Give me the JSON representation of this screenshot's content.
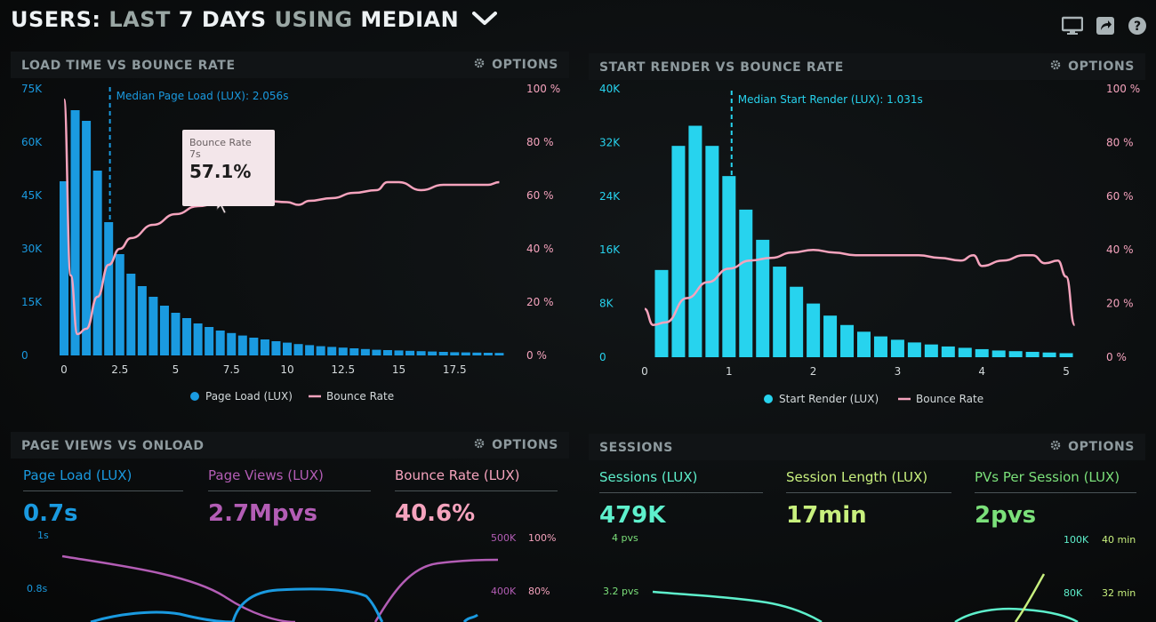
{
  "header": {
    "part1": "USERS:",
    "part2": "LAST",
    "part3": "7 DAYS",
    "part4": "USING",
    "part5": "MEDIAN"
  },
  "icons": [
    "monitor-icon",
    "share-icon",
    "help-icon"
  ],
  "options_label": "OPTIONS",
  "colors": {
    "blue": "#1a9ae0",
    "cyan": "#27d3ee",
    "pink": "#f5a3bd",
    "purple": "#b35db5",
    "mint": "#5ef0cc",
    "lime": "#c8f07e",
    "green": "#7be07a"
  },
  "panels": {
    "load_time": {
      "title": "LOAD TIME VS BOUNCE RATE",
      "median_label": "Median Page Load (LUX): 2.056s",
      "tooltip": {
        "title": "Bounce Rate",
        "sub": "7s",
        "value": "57.1%"
      },
      "legend_bars": "Page Load (LUX)",
      "legend_line": "Bounce Rate"
    },
    "start_render": {
      "title": "START RENDER VS BOUNCE RATE",
      "median_label": "Median Start Render (LUX): 1.031s",
      "legend_bars": "Start Render (LUX)",
      "legend_line": "Bounce Rate"
    },
    "page_views": {
      "title": "PAGE VIEWS VS ONLOAD",
      "metrics": [
        {
          "label": "Page Load (LUX)",
          "value": "0.7s"
        },
        {
          "label": "Page Views (LUX)",
          "value": "2.7Mpvs"
        },
        {
          "label": "Bounce Rate (LUX)",
          "value": "40.6%"
        }
      ],
      "axis_left": [
        "1s",
        "0.8s"
      ],
      "axis_mid": [
        "500K",
        "400K"
      ],
      "axis_right": [
        "100%",
        "80%"
      ]
    },
    "sessions": {
      "title": "SESSIONS",
      "metrics": [
        {
          "label": "Sessions (LUX)",
          "value": "479K"
        },
        {
          "label": "Session Length (LUX)",
          "value": "17min"
        },
        {
          "label": "PVs Per Session (LUX)",
          "value": "2pvs"
        }
      ],
      "axis_left": [
        "4 pvs",
        "3.2 pvs"
      ],
      "axis_mid": [
        "100K",
        "80K"
      ],
      "axis_right": [
        "40 min",
        "32 min"
      ]
    }
  },
  "chart_data": [
    {
      "type": "bar",
      "title": "LOAD TIME VS BOUNCE RATE",
      "xlim": [
        0,
        20
      ],
      "xticks": [
        "0",
        "2.5",
        "5",
        "7.5",
        "10",
        "12.5",
        "15",
        "17.5"
      ],
      "y_left_ticks": [
        "0",
        "15K",
        "30K",
        "45K",
        "60K",
        "75K"
      ],
      "y_left_lim": [
        0,
        75000
      ],
      "y_right_ticks": [
        "0 %",
        "20 %",
        "40 %",
        "60 %",
        "80 %",
        "100 %"
      ],
      "y_right_lim": [
        0,
        100
      ],
      "median_x": 2.056,
      "series": [
        {
          "name": "Page Load (LUX)",
          "x": [
            0,
            0.5,
            1,
            1.5,
            2,
            2.5,
            3,
            3.5,
            4,
            4.5,
            5,
            5.5,
            6,
            6.5,
            7,
            7.5,
            8,
            8.5,
            9,
            9.5,
            10,
            10.5,
            11,
            11.5,
            12,
            12.5,
            13,
            13.5,
            14,
            14.5,
            15,
            15.5,
            16,
            16.5,
            17,
            17.5,
            18,
            18.5,
            19,
            19.5
          ],
          "values": [
            49000,
            69000,
            66000,
            52000,
            37500,
            28500,
            23000,
            19500,
            16500,
            14000,
            12000,
            10500,
            9000,
            8000,
            7000,
            6300,
            5600,
            5000,
            4500,
            4000,
            3600,
            3200,
            2900,
            2600,
            2400,
            2200,
            2000,
            1800,
            1600,
            1500,
            1400,
            1300,
            1200,
            1100,
            1000,
            900,
            850,
            800,
            750,
            700
          ]
        },
        {
          "name": "Bounce Rate",
          "x": [
            0,
            0.3,
            0.6,
            1,
            1.5,
            2,
            2.5,
            3,
            4,
            5,
            6,
            7,
            8,
            9,
            10,
            10.5,
            11,
            12,
            13,
            14,
            14.5,
            15,
            16,
            17,
            17.5,
            18,
            19,
            19.5
          ],
          "values": [
            96,
            30,
            8,
            10,
            22,
            34,
            40,
            44,
            49,
            53,
            56,
            57.1,
            58,
            58,
            57.5,
            56.5,
            58,
            59,
            61,
            62,
            65,
            65,
            62,
            64,
            64,
            64,
            64,
            65
          ]
        }
      ]
    },
    {
      "type": "bar",
      "title": "START RENDER VS BOUNCE RATE",
      "xlim": [
        0,
        5.2
      ],
      "xticks": [
        "0",
        "1",
        "2",
        "3",
        "4",
        "5"
      ],
      "y_left_ticks": [
        "0",
        "8K",
        "16K",
        "24K",
        "32K",
        "40K"
      ],
      "y_left_lim": [
        0,
        40000
      ],
      "y_right_ticks": [
        "0 %",
        "20 %",
        "40 %",
        "60 %",
        "80 %",
        "100 %"
      ],
      "y_right_lim": [
        0,
        100
      ],
      "median_x": 1.031,
      "series": [
        {
          "name": "Start Render (LUX)",
          "x": [
            0.2,
            0.4,
            0.6,
            0.8,
            1.0,
            1.2,
            1.4,
            1.6,
            1.8,
            2.0,
            2.2,
            2.4,
            2.6,
            2.8,
            3.0,
            3.2,
            3.4,
            3.6,
            3.8,
            4.0,
            4.2,
            4.4,
            4.6,
            4.8,
            5.0
          ],
          "values": [
            13000,
            31500,
            34500,
            31500,
            27000,
            22000,
            17500,
            13500,
            10500,
            8000,
            6200,
            4800,
            3800,
            3100,
            2600,
            2200,
            1900,
            1600,
            1400,
            1200,
            1000,
            900,
            800,
            700,
            600
          ]
        },
        {
          "name": "Bounce Rate",
          "x": [
            0,
            0.1,
            0.25,
            0.5,
            0.75,
            1.0,
            1.25,
            1.5,
            1.75,
            2.0,
            2.25,
            2.5,
            3.0,
            3.25,
            3.5,
            3.75,
            3.9,
            4.0,
            4.25,
            4.5,
            4.6,
            4.75,
            4.9,
            5.0,
            5.1
          ],
          "values": [
            18,
            12,
            13,
            22,
            28,
            33,
            36,
            37,
            39,
            40,
            39,
            38,
            38,
            38,
            37,
            36,
            38,
            34,
            36,
            38,
            38,
            35,
            36,
            30,
            12
          ]
        }
      ]
    }
  ]
}
